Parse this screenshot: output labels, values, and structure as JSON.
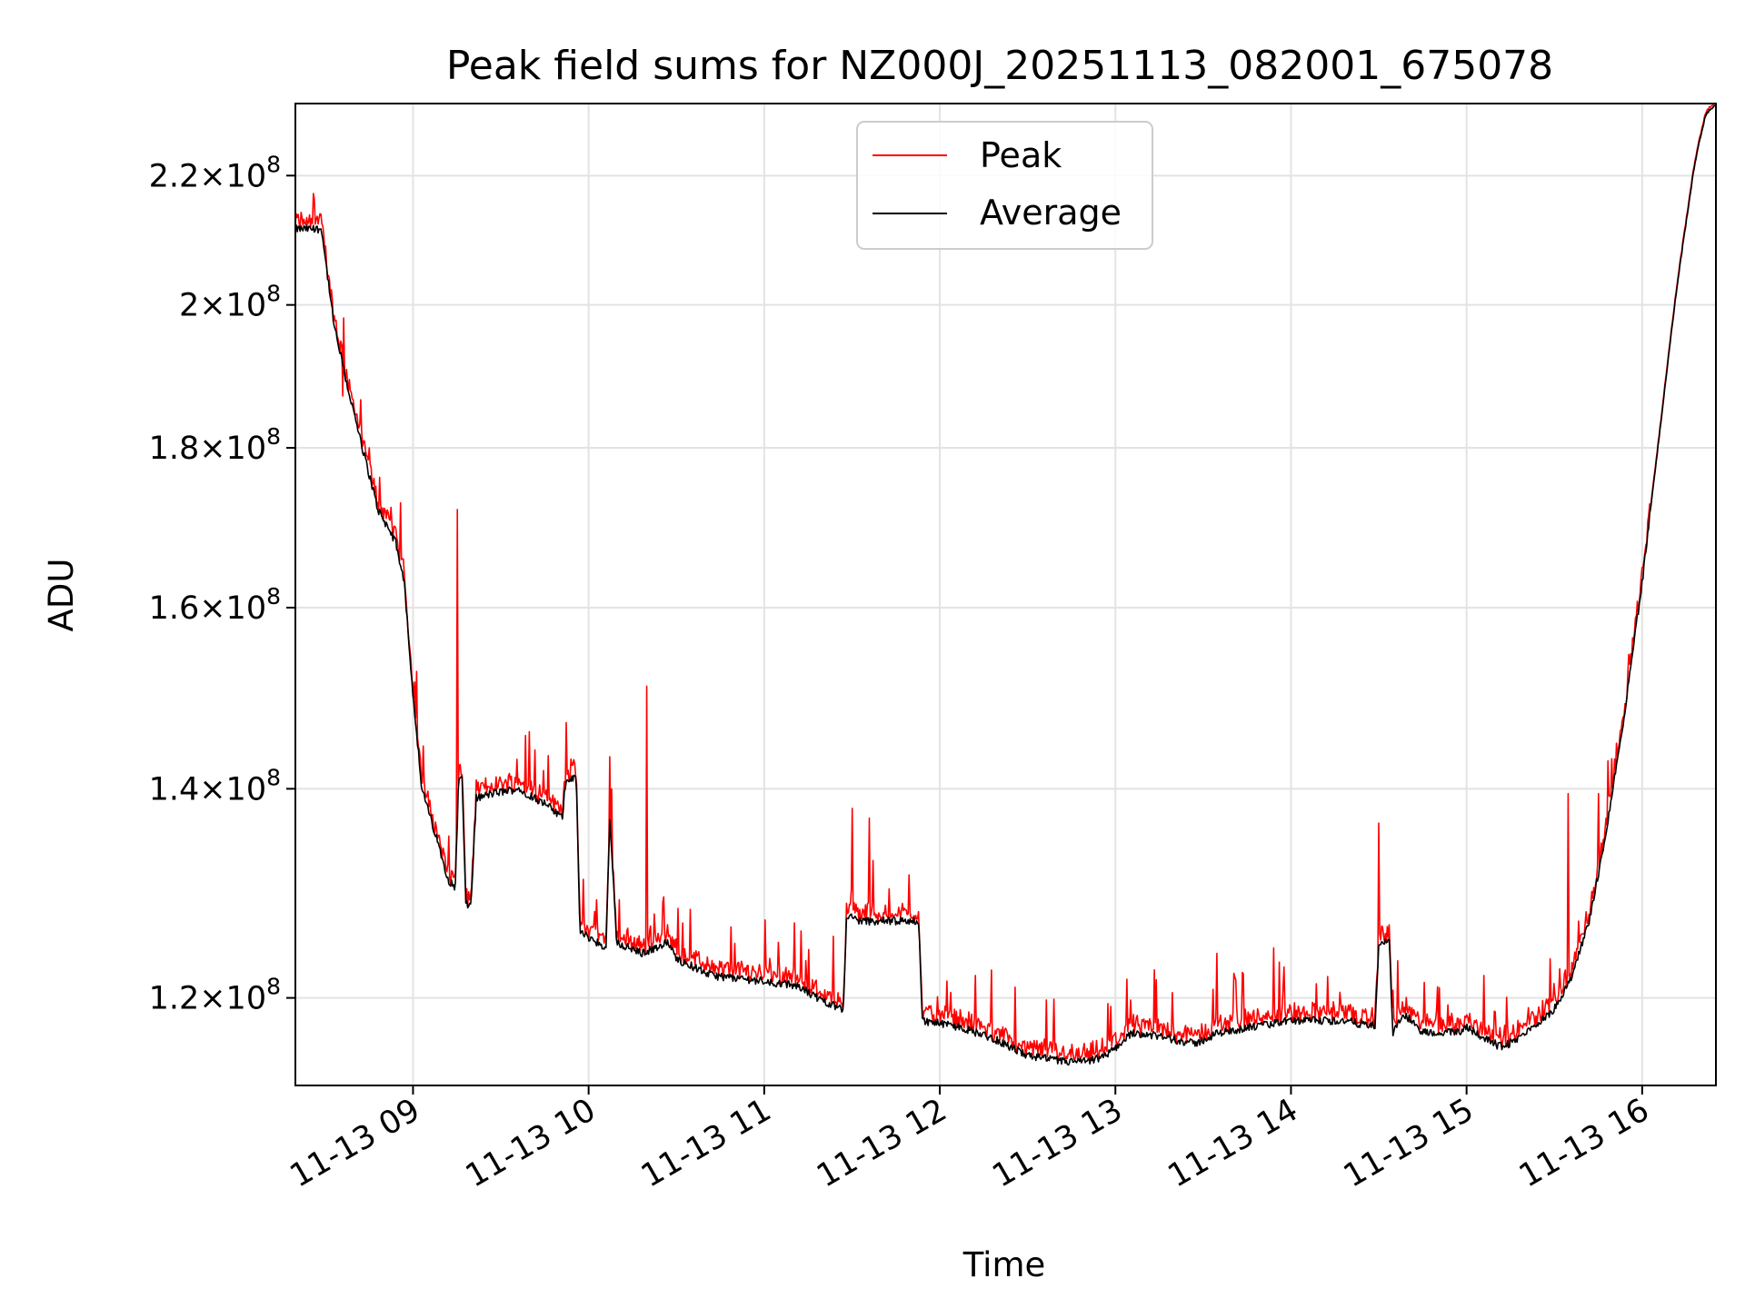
{
  "chart_data": {
    "type": "line",
    "title": "Peak field sums for NZ000J_20251113_082001_675078",
    "xlabel": "Time",
    "ylabel": "ADU",
    "y_scale": "log",
    "ylim": [
      112500000,
      232000000
    ],
    "xlim_hours": [
      8.33,
      16.42
    ],
    "x_ticks": [
      {
        "value": 9,
        "label": "11-13 09"
      },
      {
        "value": 10,
        "label": "11-13 10"
      },
      {
        "value": 11,
        "label": "11-13 11"
      },
      {
        "value": 12,
        "label": "11-13 12"
      },
      {
        "value": 13,
        "label": "11-13 13"
      },
      {
        "value": 14,
        "label": "11-13 14"
      },
      {
        "value": 15,
        "label": "11-13 15"
      },
      {
        "value": 16,
        "label": "11-13 16"
      }
    ],
    "y_ticks": [
      {
        "value": 120000000,
        "mantissa": "1.2",
        "exponent": "8"
      },
      {
        "value": 140000000,
        "mantissa": "1.4",
        "exponent": "8"
      },
      {
        "value": 160000000,
        "mantissa": "1.6",
        "exponent": "8"
      },
      {
        "value": 180000000,
        "mantissa": "1.8",
        "exponent": "8"
      },
      {
        "value": 200000000,
        "mantissa": "2",
        "exponent": "8"
      },
      {
        "value": 220000000,
        "mantissa": "2.2",
        "exponent": "8"
      }
    ],
    "times_label": "×",
    "grid": true,
    "legend_position": "top-center",
    "series": [
      {
        "name": "Peak",
        "color": "#ff0000"
      },
      {
        "name": "Average",
        "color": "#000000"
      }
    ],
    "baseline": [
      [
        8.33,
        211.5
      ],
      [
        8.48,
        211.5
      ],
      [
        8.5,
        207
      ],
      [
        8.55,
        197
      ],
      [
        8.62,
        189
      ],
      [
        8.7,
        181
      ],
      [
        8.8,
        172
      ],
      [
        8.9,
        168
      ],
      [
        8.95,
        163
      ],
      [
        9.0,
        150
      ],
      [
        9.05,
        140
      ],
      [
        9.1,
        137
      ],
      [
        9.15,
        134
      ],
      [
        9.2,
        131
      ],
      [
        9.24,
        130
      ],
      [
        9.26,
        141
      ],
      [
        9.28,
        141
      ],
      [
        9.3,
        128.5
      ],
      [
        9.33,
        128.5
      ],
      [
        9.36,
        139
      ],
      [
        9.45,
        139.5
      ],
      [
        9.6,
        140
      ],
      [
        9.75,
        138.5
      ],
      [
        9.85,
        137
      ],
      [
        9.87,
        141
      ],
      [
        9.93,
        141
      ],
      [
        9.95,
        126
      ],
      [
        10.05,
        125
      ],
      [
        10.1,
        124.5
      ],
      [
        10.12,
        137
      ],
      [
        10.16,
        125
      ],
      [
        10.3,
        124
      ],
      [
        10.45,
        125
      ],
      [
        10.5,
        123.5
      ],
      [
        10.7,
        122
      ],
      [
        11.0,
        121.5
      ],
      [
        11.2,
        121
      ],
      [
        11.3,
        120
      ],
      [
        11.45,
        119
      ],
      [
        11.47,
        127.5
      ],
      [
        11.55,
        127
      ],
      [
        11.7,
        127
      ],
      [
        11.88,
        127
      ],
      [
        11.9,
        118
      ],
      [
        12.1,
        117.5
      ],
      [
        12.3,
        116.5
      ],
      [
        12.5,
        115
      ],
      [
        12.7,
        114.5
      ],
      [
        12.85,
        114.5
      ],
      [
        12.95,
        115
      ],
      [
        13.1,
        117
      ],
      [
        13.3,
        116.5
      ],
      [
        13.45,
        116
      ],
      [
        13.6,
        117
      ],
      [
        13.8,
        117.5
      ],
      [
        14.0,
        118
      ],
      [
        14.3,
        118
      ],
      [
        14.48,
        117.5
      ],
      [
        14.5,
        125
      ],
      [
        14.56,
        125
      ],
      [
        14.58,
        117
      ],
      [
        14.65,
        118.5
      ],
      [
        14.75,
        117
      ],
      [
        14.95,
        117
      ],
      [
        15.0,
        117.5
      ],
      [
        15.1,
        116.5
      ],
      [
        15.2,
        115.7
      ],
      [
        15.3,
        116.5
      ],
      [
        15.5,
        119
      ],
      [
        15.6,
        122
      ],
      [
        15.7,
        127
      ],
      [
        15.8,
        136
      ],
      [
        15.9,
        148
      ],
      [
        16.0,
        163
      ],
      [
        16.1,
        182
      ],
      [
        16.2,
        203
      ],
      [
        16.3,
        222
      ],
      [
        16.36,
        230
      ],
      [
        16.42,
        232
      ]
    ],
    "peak_spikes": [
      {
        "t": 9.25,
        "v": 172
      },
      {
        "t": 10.33,
        "v": 151
      },
      {
        "t": 9.66,
        "v": 146
      },
      {
        "t": 9.87,
        "v": 147
      },
      {
        "t": 10.13,
        "v": 140
      },
      {
        "t": 11.5,
        "v": 138
      },
      {
        "t": 11.6,
        "v": 137
      },
      {
        "t": 14.5,
        "v": 136.5
      },
      {
        "t": 15.58,
        "v": 139.5
      },
      {
        "t": 15.75,
        "v": 139.5
      },
      {
        "t": 13.58,
        "v": 124
      },
      {
        "t": 12.2,
        "v": 122
      },
      {
        "t": 13.22,
        "v": 122.5
      },
      {
        "t": 13.9,
        "v": 124.5
      },
      {
        "t": 14.28,
        "v": 120.5
      },
      {
        "t": 15.1,
        "v": 122
      },
      {
        "t": 8.6,
        "v": 187
      },
      {
        "t": 8.75,
        "v": 180
      }
    ]
  }
}
